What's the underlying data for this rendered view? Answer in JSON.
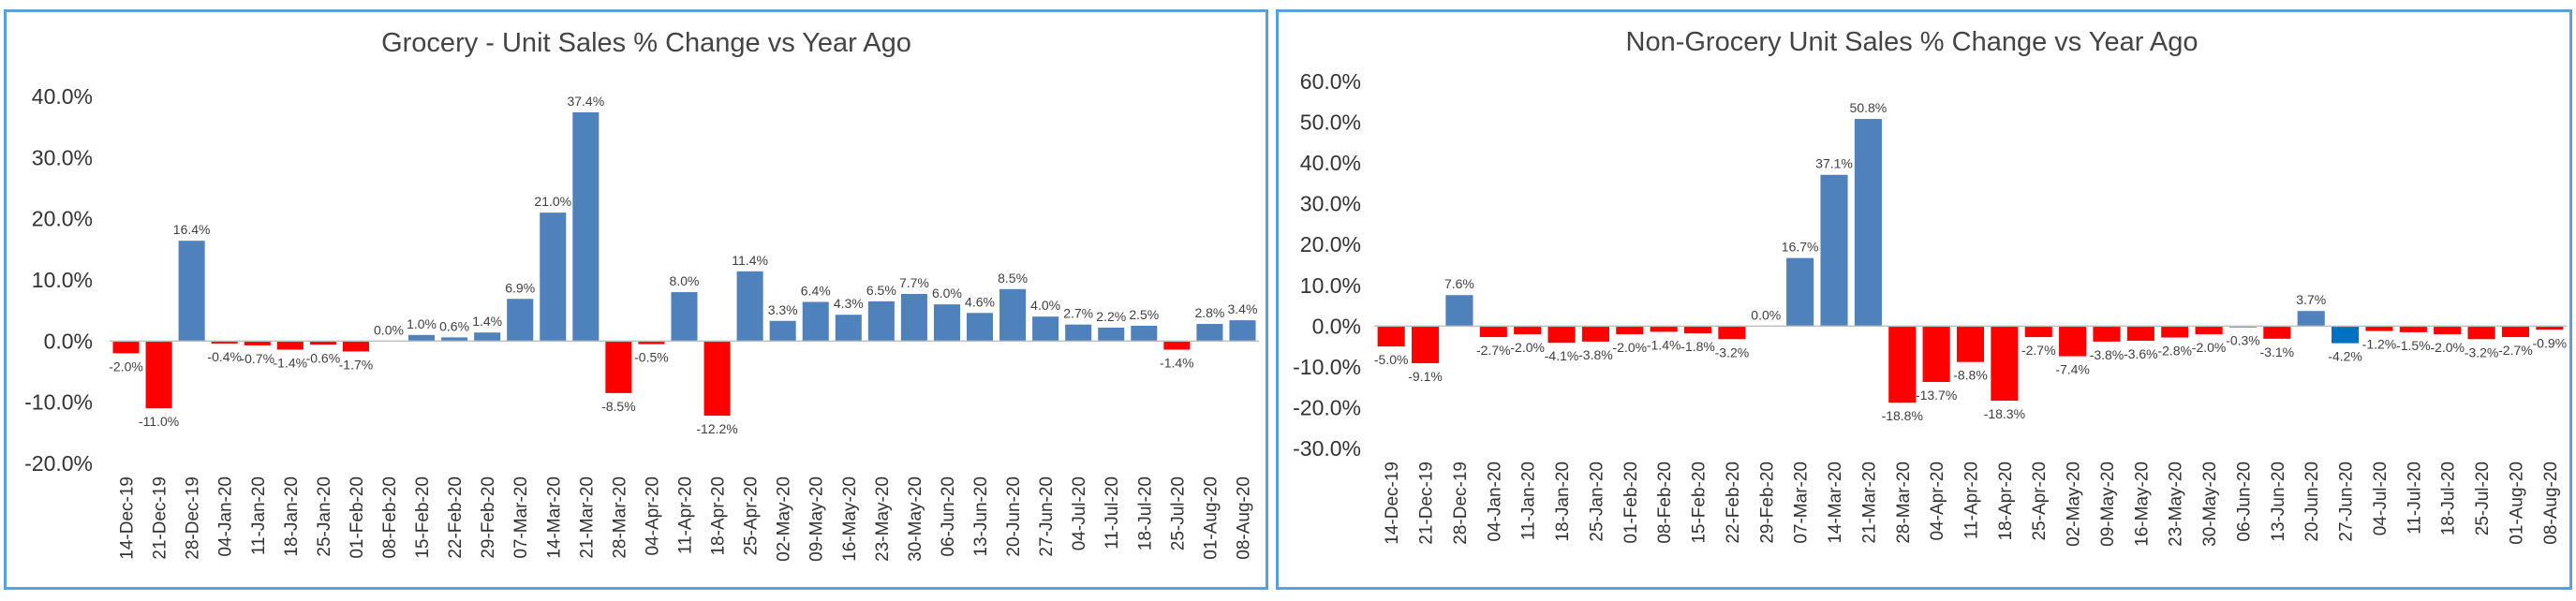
{
  "chart_data": [
    {
      "type": "bar",
      "title": "Grocery - Unit Sales % Change vs Year Ago",
      "xlabel": "",
      "ylabel": "",
      "ylim": [
        -20,
        40
      ],
      "yticks": [
        "-20.0%",
        "-10.0%",
        "0.0%",
        "10.0%",
        "20.0%",
        "30.0%",
        "40.0%"
      ],
      "ytick_values": [
        -20,
        -10,
        0,
        10,
        20,
        30,
        40
      ],
      "grid": false,
      "legend": "none",
      "colors": {
        "positive": "#4f81bd",
        "negative": "#ff0000"
      },
      "categories": [
        "14-Dec-19",
        "21-Dec-19",
        "28-Dec-19",
        "04-Jan-20",
        "11-Jan-20",
        "18-Jan-20",
        "25-Jan-20",
        "01-Feb-20",
        "08-Feb-20",
        "15-Feb-20",
        "22-Feb-20",
        "29-Feb-20",
        "07-Mar-20",
        "14-Mar-20",
        "21-Mar-20",
        "28-Mar-20",
        "04-Apr-20",
        "11-Apr-20",
        "18-Apr-20",
        "25-Apr-20",
        "02-May-20",
        "09-May-20",
        "16-May-20",
        "23-May-20",
        "30-May-20",
        "06-Jun-20",
        "13-Jun-20",
        "20-Jun-20",
        "27-Jun-20",
        "04-Jul-20",
        "11-Jul-20",
        "18-Jul-20",
        "25-Jul-20",
        "01-Aug-20",
        "08-Aug-20"
      ],
      "values": [
        -2.0,
        -11.0,
        16.4,
        -0.4,
        -0.7,
        -1.4,
        -0.6,
        -1.7,
        0.0,
        1.0,
        0.6,
        1.4,
        6.9,
        21.0,
        37.4,
        -8.5,
        -0.5,
        8.0,
        -12.2,
        11.4,
        3.3,
        6.4,
        4.3,
        6.5,
        7.7,
        6.0,
        4.6,
        8.5,
        4.0,
        2.7,
        2.2,
        2.5,
        -1.4,
        2.8,
        3.4
      ],
      "data_labels": [
        "-2.0%",
        "-11.0%",
        "16.4%",
        "-0.4%",
        "-0.7%",
        "-1.4%",
        "-0.6%",
        "-1.7%",
        "0.0%",
        "1.0%",
        "0.6%",
        "1.4%",
        "6.9%",
        "21.0%",
        "37.4%",
        "-8.5%",
        "-0.5%",
        "8.0%",
        "-12.2%",
        "11.4%",
        "3.3%",
        "6.4%",
        "4.3%",
        "6.5%",
        "7.7%",
        "6.0%",
        "4.6%",
        "8.5%",
        "4.0%",
        "2.7%",
        "2.2%",
        "2.5%",
        "-1.4%",
        "2.8%",
        "3.4%"
      ]
    },
    {
      "type": "bar",
      "title": "Non-Grocery Unit Sales % Change vs Year Ago",
      "xlabel": "",
      "ylabel": "",
      "ylim": [
        -30,
        60
      ],
      "yticks": [
        "-30.0%",
        "-20.0%",
        "-10.0%",
        "0.0%",
        "10.0%",
        "20.0%",
        "30.0%",
        "40.0%",
        "50.0%",
        "60.0%"
      ],
      "ytick_values": [
        -30,
        -20,
        -10,
        0,
        10,
        20,
        30,
        40,
        50,
        60
      ],
      "grid": false,
      "legend": "none",
      "colors": {
        "positive": "#4f81bd",
        "negative": "#ff0000",
        "highlight": "#0070c0"
      },
      "highlight_index": 28,
      "categories": [
        "14-Dec-19",
        "21-Dec-19",
        "28-Dec-19",
        "04-Jan-20",
        "11-Jan-20",
        "18-Jan-20",
        "25-Jan-20",
        "01-Feb-20",
        "08-Feb-20",
        "15-Feb-20",
        "22-Feb-20",
        "29-Feb-20",
        "07-Mar-20",
        "14-Mar-20",
        "21-Mar-20",
        "28-Mar-20",
        "04-Apr-20",
        "11-Apr-20",
        "18-Apr-20",
        "25-Apr-20",
        "02-May-20",
        "09-May-20",
        "16-May-20",
        "23-May-20",
        "30-May-20",
        "06-Jun-20",
        "13-Jun-20",
        "20-Jun-20",
        "27-Jun-20",
        "04-Jul-20",
        "11-Jul-20",
        "18-Jul-20",
        "25-Jul-20",
        "01-Aug-20",
        "08-Aug-20"
      ],
      "values": [
        -5.0,
        -9.1,
        7.6,
        -2.7,
        -2.0,
        -4.1,
        -3.8,
        -2.0,
        -1.4,
        -1.8,
        -3.2,
        0.0,
        16.7,
        37.1,
        50.8,
        -18.8,
        -13.7,
        -8.8,
        -18.3,
        -2.7,
        -7.4,
        -3.8,
        -3.6,
        -2.8,
        -2.0,
        -0.3,
        -3.1,
        3.7,
        -4.2,
        -1.2,
        -1.5,
        -2.0,
        -3.2,
        -2.7,
        -0.9
      ],
      "data_labels": [
        "-5.0%",
        "-9.1%",
        "7.6%",
        "-2.7%",
        "-2.0%",
        "-4.1%",
        "-3.8%",
        "-2.0%",
        "-1.4%",
        "-1.8%",
        "-3.2%",
        "0.0%",
        "16.7%",
        "37.1%",
        "50.8%",
        "-18.8%",
        "-13.7%",
        "-8.8%",
        "-18.3%",
        "-2.7%",
        "-7.4%",
        "-3.8%",
        "-3.6%",
        "-2.8%",
        "-2.0%",
        "-0.3%",
        "-3.1%",
        "3.7%",
        "-4.2%",
        "-1.2%",
        "-1.5%",
        "-2.0%",
        "-3.2%",
        "-2.7%",
        "-0.9%"
      ]
    }
  ]
}
